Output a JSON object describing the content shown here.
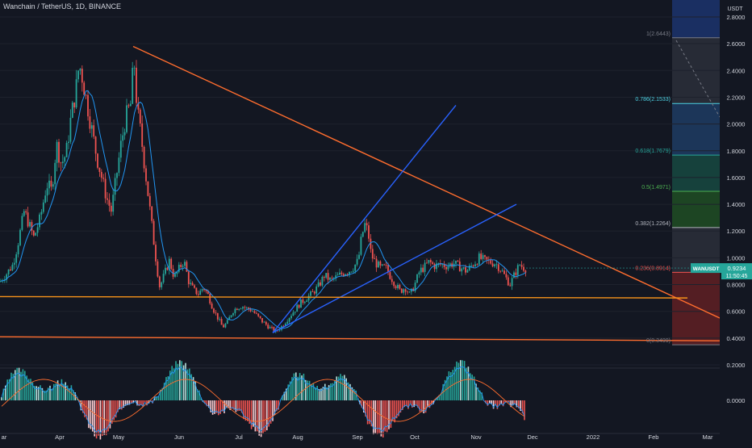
{
  "header": {
    "symbol_line": "Wanchain / TetherUS, 1D, BINANCE"
  },
  "axis": {
    "currency": "USDT"
  },
  "colors": {
    "bg": "#131722",
    "up": "#26a69a",
    "down": "#ef5350",
    "wick_up": "#26a69a",
    "wick_down": "#ef5350",
    "orange": "#ff6d2e",
    "hline": "#f7931a",
    "blue": "#2962ff",
    "ma": "#2196f3",
    "axis_text": "#d1d4dc",
    "price_label_bg": "#26a69a"
  },
  "price_label": {
    "symbol": "WANUSDT",
    "price": "0.9234",
    "countdown": "11:50:45"
  },
  "chart_data": [
    {
      "type": "candlestick",
      "title": "Wanchain / TetherUS, 1D, BINANCE",
      "ylabel": "USDT",
      "ylim": [
        0.15,
        2.95
      ],
      "y_ticks": [
        "2.8000",
        "2.6000",
        "2.4000",
        "2.2000",
        "2.0000",
        "1.8000",
        "1.6000",
        "1.4000",
        "1.2000",
        "1.0000",
        "0.8000",
        "0.6000",
        "0.4000",
        "0.2000"
      ],
      "x_ticks": [
        "ar",
        "Apr",
        "May",
        "Jun",
        "Jul",
        "Aug",
        "Sep",
        "Oct",
        "Nov",
        "Dec",
        "2022",
        "Feb",
        "Mar"
      ],
      "keypoints": [
        [
          0,
          0.82
        ],
        [
          8,
          0.88
        ],
        [
          16,
          0.95
        ],
        [
          22,
          1.1
        ],
        [
          30,
          1.35
        ],
        [
          36,
          1.25
        ],
        [
          42,
          1.15
        ],
        [
          50,
          1.3
        ],
        [
          58,
          1.55
        ],
        [
          64,
          1.5
        ],
        [
          70,
          1.85
        ],
        [
          76,
          1.7
        ],
        [
          82,
          1.78
        ],
        [
          88,
          2.05
        ],
        [
          94,
          2.25
        ],
        [
          98,
          2.45
        ],
        [
          102,
          2.35
        ],
        [
          108,
          2.15
        ],
        [
          114,
          1.95
        ],
        [
          120,
          1.75
        ],
        [
          126,
          1.6
        ],
        [
          132,
          1.45
        ],
        [
          138,
          1.35
        ],
        [
          144,
          1.6
        ],
        [
          150,
          1.85
        ],
        [
          156,
          2.05
        ],
        [
          162,
          2.15
        ],
        [
          166,
          2.5
        ],
        [
          170,
          2.1
        ],
        [
          174,
          1.95
        ],
        [
          178,
          1.75
        ],
        [
          182,
          1.55
        ],
        [
          186,
          1.35
        ],
        [
          190,
          1.15
        ],
        [
          194,
          0.95
        ],
        [
          198,
          0.78
        ],
        [
          204,
          0.88
        ],
        [
          210,
          0.98
        ],
        [
          216,
          0.85
        ],
        [
          222,
          0.92
        ],
        [
          228,
          0.98
        ],
        [
          234,
          0.82
        ],
        [
          240,
          0.76
        ],
        [
          246,
          0.73
        ],
        [
          252,
          0.78
        ],
        [
          258,
          0.72
        ],
        [
          264,
          0.62
        ],
        [
          270,
          0.55
        ],
        [
          276,
          0.48
        ],
        [
          282,
          0.52
        ],
        [
          288,
          0.6
        ],
        [
          294,
          0.63
        ],
        [
          300,
          0.64
        ],
        [
          306,
          0.62
        ],
        [
          312,
          0.61
        ],
        [
          318,
          0.57
        ],
        [
          324,
          0.53
        ],
        [
          330,
          0.5
        ],
        [
          336,
          0.47
        ],
        [
          342,
          0.45
        ],
        [
          348,
          0.48
        ],
        [
          356,
          0.54
        ],
        [
          364,
          0.6
        ],
        [
          372,
          0.66
        ],
        [
          380,
          0.7
        ],
        [
          388,
          0.74
        ],
        [
          396,
          0.8
        ],
        [
          402,
          0.87
        ],
        [
          410,
          0.83
        ],
        [
          418,
          0.86
        ],
        [
          426,
          0.89
        ],
        [
          432,
          0.9
        ],
        [
          438,
          0.93
        ],
        [
          444,
          0.98
        ],
        [
          448,
          1.15
        ],
        [
          452,
          1.25
        ],
        [
          456,
          1.2
        ],
        [
          460,
          1.02
        ],
        [
          466,
          0.96
        ],
        [
          472,
          0.92
        ],
        [
          478,
          0.93
        ],
        [
          484,
          0.86
        ],
        [
          490,
          0.8
        ],
        [
          496,
          0.75
        ],
        [
          502,
          0.78
        ],
        [
          508,
          0.72
        ],
        [
          514,
          0.8
        ],
        [
          520,
          0.9
        ],
        [
          526,
          0.93
        ],
        [
          532,
          0.97
        ],
        [
          538,
          0.94
        ],
        [
          546,
          0.95
        ],
        [
          554,
          0.94
        ],
        [
          562,
          0.96
        ],
        [
          570,
          0.93
        ],
        [
          578,
          0.9
        ],
        [
          586,
          0.95
        ],
        [
          594,
          1.0
        ],
        [
          600,
          0.98
        ],
        [
          606,
          0.97
        ],
        [
          614,
          0.96
        ],
        [
          620,
          0.92
        ],
        [
          626,
          0.86
        ],
        [
          632,
          0.8
        ],
        [
          638,
          0.88
        ],
        [
          644,
          0.95
        ],
        [
          648,
          0.93
        ],
        [
          652,
          0.92
        ]
      ],
      "fibonacci": [
        {
          "label": "1(2.6443)",
          "value": 2.6443,
          "color": "#787b86"
        },
        {
          "label": "0.786(2.1533)",
          "value": 2.1533,
          "color": "#4dd0e1"
        },
        {
          "label": "0.618(1.7679)",
          "value": 1.7679,
          "color": "#26a69a"
        },
        {
          "label": "0.5(1.4971)",
          "value": 1.4971,
          "color": "#4caf50"
        },
        {
          "label": "0.382(1.2264)",
          "value": 1.2264,
          "color": "#b2b5be"
        },
        {
          "label": "0.236(0.8914)",
          "value": 0.8914,
          "color": "#ef5350"
        },
        {
          "label": "0(0.3499)",
          "value": 0.3499,
          "color": "#787b86"
        }
      ],
      "fib_zones": [
        {
          "from": 2.95,
          "to": 2.6443,
          "color": "#1c3269"
        },
        {
          "from": 2.6443,
          "to": 2.1533,
          "color": "#2a2e39"
        },
        {
          "from": 2.1533,
          "to": 1.7679,
          "color": "#1e3a5f"
        },
        {
          "from": 1.7679,
          "to": 1.4971,
          "color": "#17463f"
        },
        {
          "from": 1.4971,
          "to": 1.2264,
          "color": "#1f4a24"
        },
        {
          "from": 1.2264,
          "to": 0.8914,
          "color": "#2a2e39"
        },
        {
          "from": 0.8914,
          "to": 0.3499,
          "color": "#5c1f24"
        }
      ],
      "trendlines": [
        {
          "name": "down",
          "points": [
            [
              165,
              2.58
            ],
            [
              892,
              0.55
            ]
          ],
          "color": "#ff6d2e"
        },
        {
          "name": "up-steep",
          "points": [
            [
              338,
              0.44
            ],
            [
              565,
              2.14
            ]
          ],
          "color": "#2962ff"
        },
        {
          "name": "up-channel",
          "points": [
            [
              338,
              0.44
            ],
            [
              640,
              1.4
            ]
          ],
          "color": "#2962ff"
        },
        {
          "name": "h-support-1",
          "points": [
            [
              0,
              0.71
            ],
            [
              852,
              0.7
            ]
          ],
          "color": "#f7931a"
        },
        {
          "name": "h-support-2",
          "points": [
            [
              0,
              0.41
            ],
            [
              892,
              0.38
            ]
          ],
          "color": "#ff6d2e"
        }
      ]
    },
    {
      "type": "bar",
      "title": "",
      "ylim": [
        -1,
        1
      ],
      "y_ticks": [
        "0.0000"
      ],
      "zero_label": "0.0000"
    }
  ]
}
